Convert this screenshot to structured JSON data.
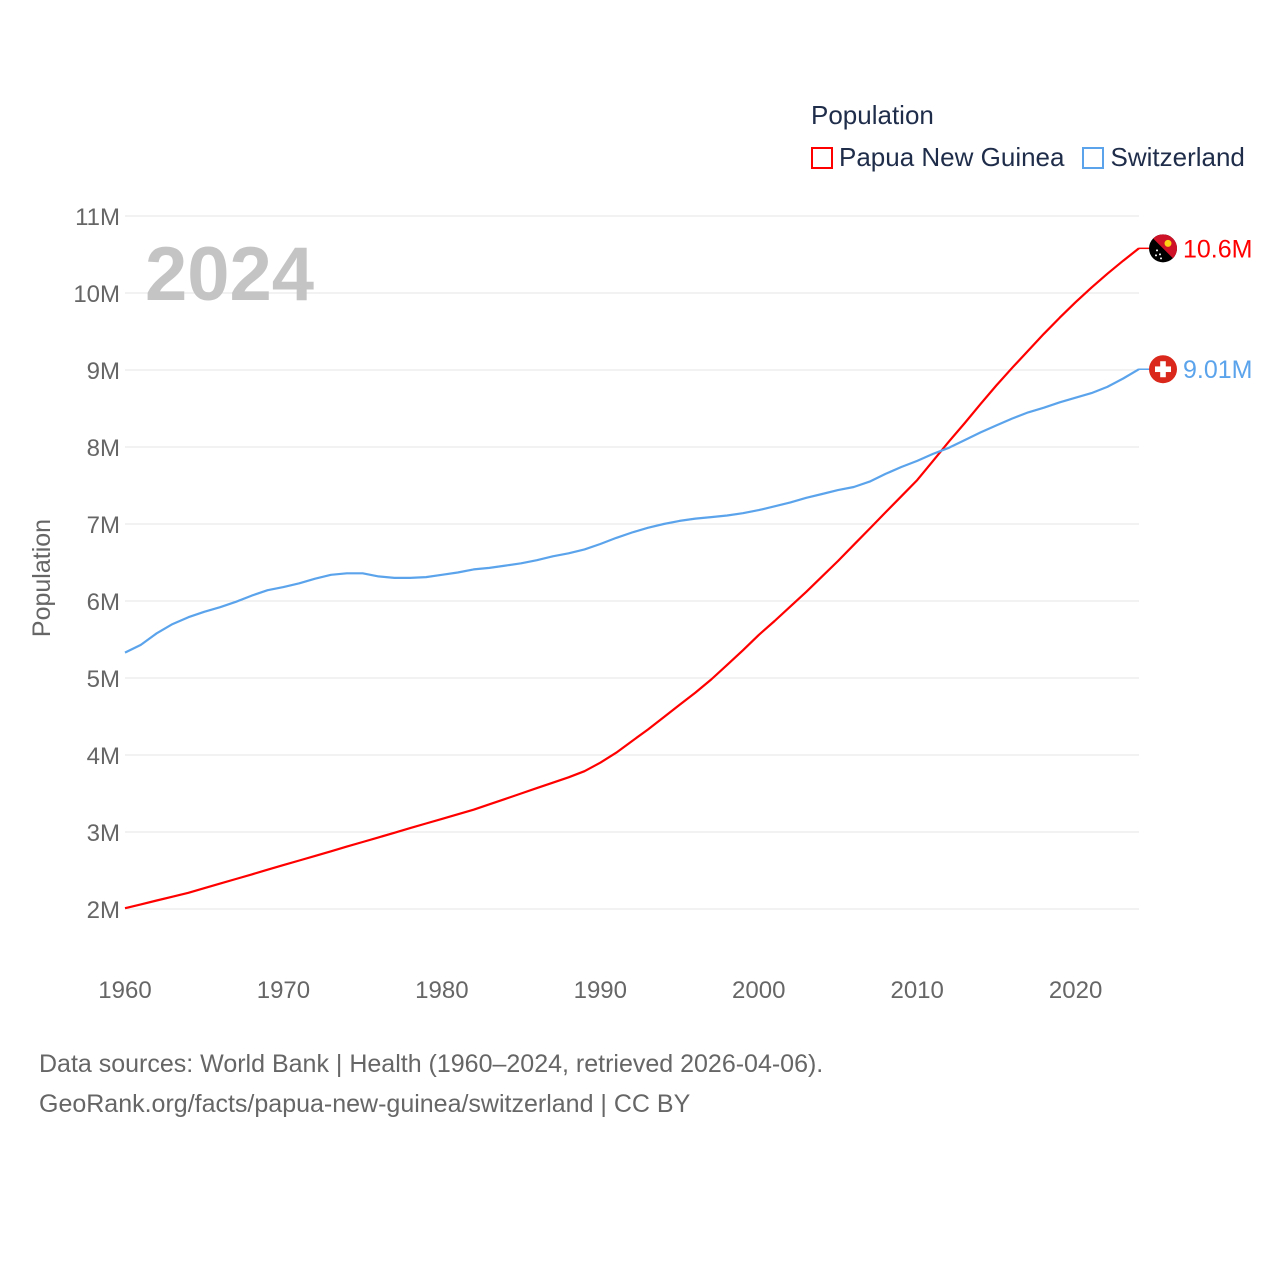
{
  "chart_data": {
    "type": "line",
    "title": "Population",
    "year_watermark": "2024",
    "ylabel": "Population",
    "xlabel": "",
    "xlim": [
      1960,
      2024
    ],
    "ylim": [
      2,
      11
    ],
    "y_unit": "M",
    "x_ticks": [
      "1960",
      "1970",
      "1980",
      "1990",
      "2000",
      "2010",
      "2020"
    ],
    "y_ticks": [
      "2M",
      "3M",
      "4M",
      "5M",
      "6M",
      "7M",
      "8M",
      "9M",
      "10M",
      "11M"
    ],
    "grid": true,
    "legend_position": "top-right",
    "x_start": 1960,
    "series": [
      {
        "name": "Papua New Guinea",
        "color": "#ff0000",
        "end_label": "10.6M",
        "flag": "papua-new-guinea-flag",
        "values": [
          2.01,
          2.06,
          2.11,
          2.16,
          2.21,
          2.27,
          2.33,
          2.39,
          2.45,
          2.51,
          2.57,
          2.63,
          2.69,
          2.75,
          2.81,
          2.87,
          2.93,
          2.99,
          3.05,
          3.11,
          3.17,
          3.23,
          3.29,
          3.36,
          3.43,
          3.5,
          3.57,
          3.64,
          3.71,
          3.79,
          3.9,
          4.03,
          4.18,
          4.33,
          4.49,
          4.65,
          4.81,
          4.98,
          5.17,
          5.36,
          5.56,
          5.74,
          5.93,
          6.12,
          6.32,
          6.52,
          6.73,
          6.94,
          7.15,
          7.36,
          7.57,
          7.82,
          8.07,
          8.31,
          8.56,
          8.8,
          9.03,
          9.25,
          9.47,
          9.68,
          9.88,
          10.07,
          10.25,
          10.42,
          10.58
        ]
      },
      {
        "name": "Switzerland",
        "color": "#5ba4ec",
        "end_label": "9.01M",
        "flag": "switzerland-flag",
        "values": [
          5.33,
          5.43,
          5.58,
          5.7,
          5.79,
          5.86,
          5.92,
          5.99,
          6.07,
          6.14,
          6.18,
          6.23,
          6.29,
          6.34,
          6.36,
          6.36,
          6.32,
          6.3,
          6.3,
          6.31,
          6.34,
          6.37,
          6.41,
          6.43,
          6.46,
          6.49,
          6.53,
          6.58,
          6.62,
          6.67,
          6.74,
          6.82,
          6.89,
          6.95,
          7.0,
          7.04,
          7.07,
          7.09,
          7.11,
          7.14,
          7.18,
          7.23,
          7.28,
          7.34,
          7.39,
          7.44,
          7.48,
          7.55,
          7.65,
          7.74,
          7.82,
          7.91,
          7.99,
          8.09,
          8.19,
          8.28,
          8.37,
          8.45,
          8.51,
          8.58,
          8.64,
          8.7,
          8.78,
          8.89,
          9.01
        ]
      }
    ]
  },
  "footer": {
    "line1": "Data sources: World Bank | Health (1960–2024, retrieved 2026-04-06).",
    "line2": "GeoRank.org/facts/papua-new-guinea/switzerland | CC BY"
  }
}
